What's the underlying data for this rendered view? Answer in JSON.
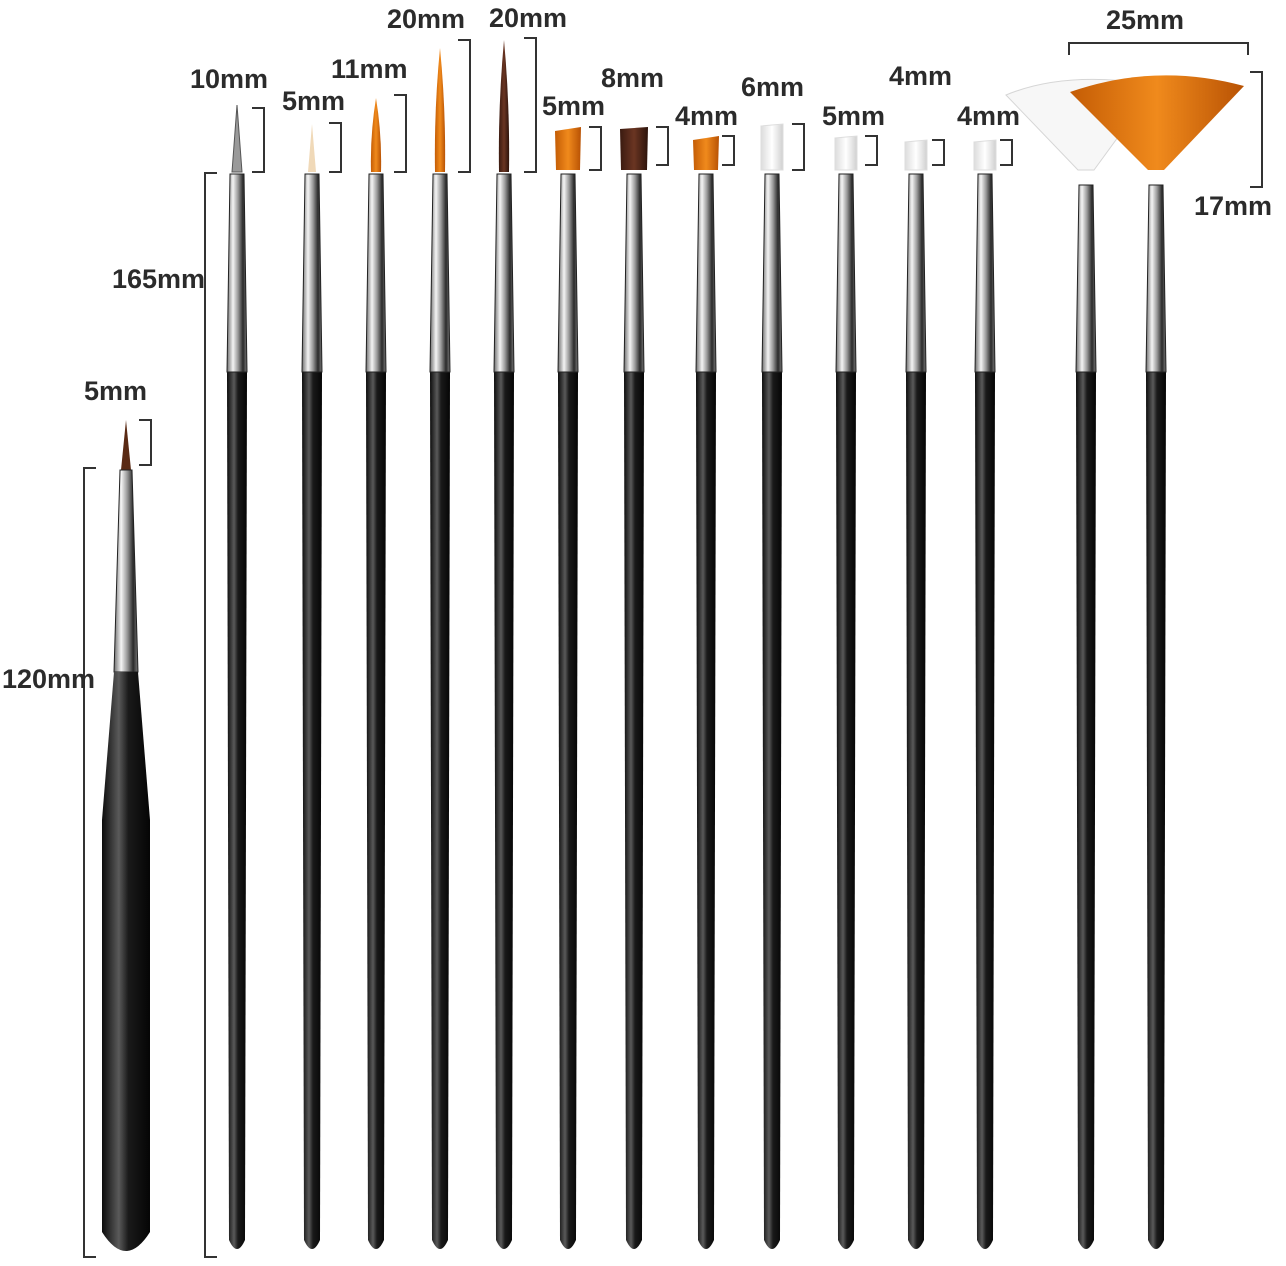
{
  "labels": {
    "short_brush_hair": "5mm",
    "short_brush_length": "120mm",
    "handle_length": "165mm",
    "b1": "10mm",
    "b2": "5mm",
    "b3": "11mm",
    "b4": "20mm",
    "b5": "20mm",
    "b6": "5mm",
    "b7": "8mm",
    "b8": "4mm",
    "b9": "6mm",
    "b10": "5mm",
    "b11": "4mm",
    "b12": "4mm",
    "fan_width": "25mm",
    "fan_height": "17mm"
  },
  "colors": {
    "handle": "#1e1e1e",
    "ferrule": "#c9c9c9",
    "orange_hair": "#e0780f",
    "brown_hair": "#4a2418",
    "white_hair": "#f2f2f2",
    "bracket": "#333333"
  }
}
